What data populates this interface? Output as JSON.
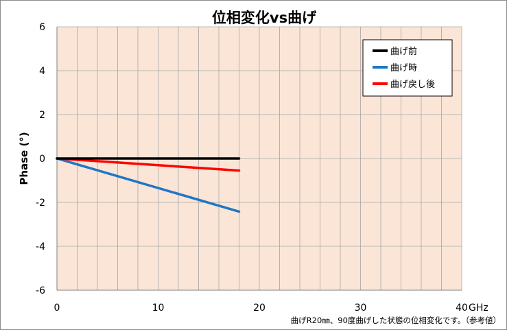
{
  "chart_data": {
    "type": "line",
    "title": "位相変化vs曲げ",
    "xlabel": "GHz",
    "ylabel": "Phase (°)",
    "xlim": [
      0,
      40
    ],
    "ylim": [
      -6,
      6
    ],
    "x_ticks": [
      0,
      10,
      20,
      30,
      40
    ],
    "y_ticks": [
      6,
      4,
      2,
      0,
      -2,
      -4,
      -6
    ],
    "x_minor_grid_step": 2,
    "grid": true,
    "legend_position": "top-right",
    "series": [
      {
        "name": "曲げ前",
        "color": "#000000",
        "x": [
          0,
          18
        ],
        "y": [
          0,
          0
        ]
      },
      {
        "name": "曲げ時",
        "color": "#1f77c4",
        "x": [
          0,
          18
        ],
        "y": [
          0,
          -2.42
        ]
      },
      {
        "name": "曲げ戻し後",
        "color": "#ff0000",
        "x": [
          0,
          18
        ],
        "y": [
          0,
          -0.55
        ]
      }
    ],
    "annotation": "曲げR20㎜、90度曲げした状態の位相変化です。（参考値）"
  }
}
